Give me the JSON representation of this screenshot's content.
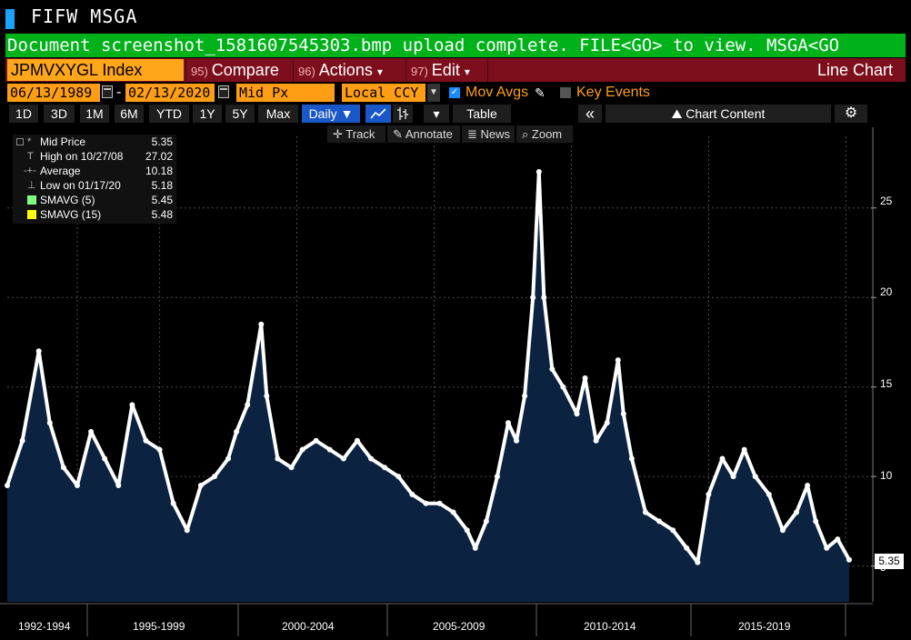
{
  "window": {
    "title": "FIFW MSGA"
  },
  "message_bar": {
    "text": "Document screenshot_1581607545303.bmp upload complete. FILE<GO> to view. MSGA<GO"
  },
  "command_bar": {
    "security": "JPMVXYGL Index",
    "compare": {
      "num": "95)",
      "label": "Compare"
    },
    "actions": {
      "num": "96)",
      "label": "Actions",
      "arrow": "▾"
    },
    "edit": {
      "num": "97)",
      "label": "Edit",
      "arrow": "▾"
    },
    "chart_type": "Line Chart"
  },
  "params": {
    "start_date": "06/13/1989",
    "dash": "-",
    "end_date": "02/13/2020",
    "field": "Mid Px",
    "currency": "Local CCY",
    "mov_avgs_label": "Mov Avgs",
    "mov_avgs_checked": true,
    "key_events_label": "Key Events",
    "key_events_checked": false
  },
  "range_buttons": [
    "1D",
    "3D",
    "1M",
    "6M",
    "YTD",
    "1Y",
    "5Y",
    "Max"
  ],
  "periodicity": "Daily",
  "table_label": "Table",
  "chart_content_label": "Chart Content",
  "tools": {
    "track": "Track",
    "annotate": "Annotate",
    "news": "News",
    "zoom": "Zoom"
  },
  "legend": [
    {
      "symbol": "*",
      "name": "Mid Price",
      "value": "5.35"
    },
    {
      "symbol": "T",
      "name": "High on 10/27/08",
      "value": "27.02"
    },
    {
      "symbol": "-+-",
      "name": "Average",
      "value": "10.18"
    },
    {
      "symbol": "⊥",
      "name": "Low on 01/17/20",
      "value": "5.18"
    },
    {
      "symbol": "",
      "name": "SMAVG (5)",
      "value": "5.45",
      "color": "#7fff7f"
    },
    {
      "symbol": "",
      "name": "SMAVG (15)",
      "value": "5.48",
      "color": "#ffff00"
    }
  ],
  "last_price_tag": "5.35",
  "colors": {
    "area_fill": "#0b2340",
    "line": "#ffffff",
    "accent_orange": "#ff9e14",
    "bar_red": "#7d0f1c",
    "bar_green": "#00b21a"
  },
  "chart_data": {
    "type": "area",
    "title": "JPMVXYGL Index",
    "xlabel": "",
    "ylabel": "",
    "x_tick_labels": [
      "1992-1994",
      "1995-1999",
      "2000-2004",
      "2005-2009",
      "2010-2014",
      "2015-2019"
    ],
    "y_ticks": [
      5,
      10,
      15,
      20,
      25
    ],
    "ylim": [
      3,
      29
    ],
    "grid": true,
    "series": [
      {
        "name": "Mid Price",
        "x": [
          1989.45,
          1990.0,
          1990.6,
          1991.0,
          1991.5,
          1992.0,
          1992.5,
          1993.0,
          1993.5,
          1994.0,
          1994.5,
          1995.0,
          1995.5,
          1996.0,
          1996.5,
          1997.0,
          1997.5,
          1997.8,
          1998.2,
          1998.7,
          1998.9,
          1999.3,
          1999.8,
          2000.2,
          2000.7,
          2001.2,
          2001.7,
          2002.2,
          2002.7,
          2003.2,
          2003.7,
          2004.2,
          2004.7,
          2005.2,
          2005.7,
          2006.2,
          2006.5,
          2006.9,
          2007.3,
          2007.7,
          2008.0,
          2008.3,
          2008.6,
          2008.82,
          2009.0,
          2009.3,
          2009.7,
          2010.2,
          2010.5,
          2010.9,
          2011.3,
          2011.7,
          2011.9,
          2012.2,
          2012.7,
          2013.2,
          2013.7,
          2014.2,
          2014.6,
          2015.0,
          2015.5,
          2015.9,
          2016.3,
          2016.7,
          2017.2,
          2017.7,
          2018.2,
          2018.6,
          2018.9,
          2019.3,
          2019.7,
          2020.12
        ],
        "values": [
          9.5,
          12.0,
          17.0,
          13.0,
          10.5,
          9.5,
          12.5,
          11.0,
          9.5,
          14.0,
          12.0,
          11.5,
          8.5,
          7.0,
          9.5,
          10.0,
          11.0,
          12.5,
          14.0,
          18.5,
          14.5,
          11.0,
          10.5,
          11.5,
          12.0,
          11.5,
          11.0,
          12.0,
          11.0,
          10.5,
          10.0,
          9.0,
          8.5,
          8.5,
          8.0,
          7.0,
          6.0,
          7.5,
          10.0,
          13.0,
          12.0,
          14.5,
          20.0,
          27.02,
          20.0,
          16.0,
          15.0,
          13.5,
          15.5,
          12.0,
          13.0,
          16.5,
          13.5,
          11.0,
          8.0,
          7.5,
          7.0,
          6.0,
          5.2,
          9.0,
          11.0,
          10.0,
          11.5,
          10.0,
          9.0,
          7.0,
          8.0,
          9.5,
          7.5,
          6.0,
          6.5,
          5.35
        ]
      }
    ]
  }
}
